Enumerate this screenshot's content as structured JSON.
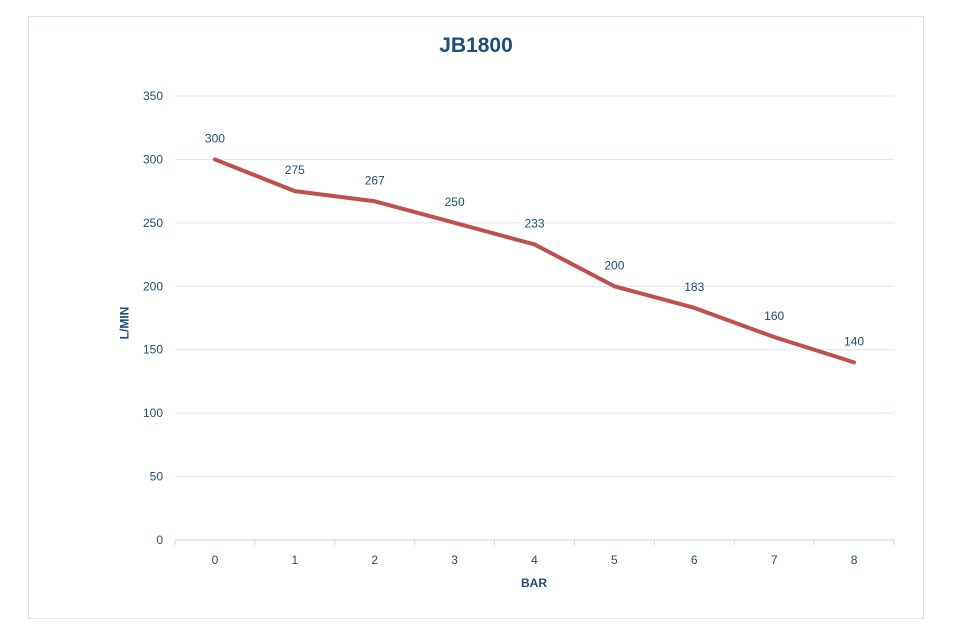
{
  "chart_data": {
    "type": "line",
    "title": "JB1800",
    "xlabel": "BAR",
    "ylabel": "L/MIN",
    "categories": [
      "0",
      "1",
      "2",
      "3",
      "4",
      "5",
      "6",
      "7",
      "8"
    ],
    "series": [
      {
        "values": [
          300,
          275,
          267,
          250,
          233,
          200,
          183,
          160,
          140
        ]
      }
    ],
    "data_labels": [
      "300",
      "275",
      "267",
      "250",
      "233",
      "200",
      "183",
      "160",
      "140"
    ],
    "y_ticks": [
      "0",
      "50",
      "100",
      "150",
      "200",
      "250",
      "300",
      "350"
    ],
    "ylim": [
      0,
      350
    ],
    "grid": true,
    "legend": "none",
    "colors": {
      "line": "#c0504d",
      "grid": "#dbe8ee",
      "text": "#1f4e79"
    }
  }
}
